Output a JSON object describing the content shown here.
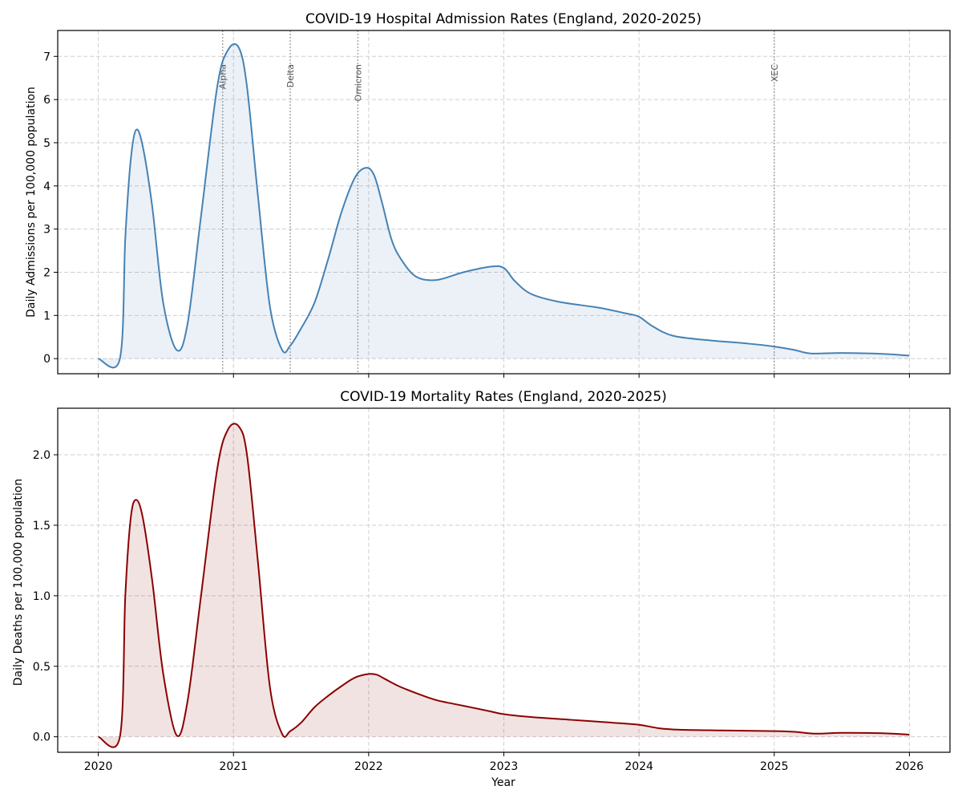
{
  "chart_data": [
    {
      "type": "area",
      "title": "COVID-19 Hospital Admission Rates (England, 2020-2025)",
      "xlabel": "",
      "ylabel": "Daily Admissions per 100,000 population",
      "xlim": [
        2019.7,
        2026.3
      ],
      "ylim": [
        -0.35,
        7.6
      ],
      "yticks": [
        0,
        1,
        2,
        3,
        4,
        5,
        6,
        7
      ],
      "ytick_labels": [
        "0",
        "1",
        "2",
        "3",
        "4",
        "5",
        "6",
        "7"
      ],
      "xticks": [
        2020,
        2021,
        2022,
        2023,
        2024,
        2025,
        2026
      ],
      "xtick_labels_visible": false,
      "grid": true,
      "line_color": "#4682b4",
      "fill_color": "#4682b4",
      "fill_alpha": 0.11,
      "x": [
        2020.0,
        2020.16,
        2020.2,
        2020.24,
        2020.28,
        2020.33,
        2020.4,
        2020.48,
        2020.58,
        2020.66,
        2020.76,
        2020.88,
        2020.96,
        2021.04,
        2021.1,
        2021.18,
        2021.27,
        2021.36,
        2021.42,
        2021.5,
        2021.6,
        2021.7,
        2021.8,
        2021.9,
        2021.98,
        2022.04,
        2022.1,
        2022.17,
        2022.24,
        2022.35,
        2022.5,
        2022.7,
        2022.9,
        2023.0,
        2023.08,
        2023.2,
        2023.4,
        2023.7,
        2023.9,
        2024.0,
        2024.1,
        2024.25,
        2024.5,
        2024.8,
        2025.0,
        2025.15,
        2025.27,
        2025.5,
        2025.8,
        2026.0
      ],
      "values": [
        0.0,
        0.0,
        2.8,
        4.6,
        5.3,
        4.9,
        3.5,
        1.3,
        0.2,
        0.8,
        3.3,
        6.3,
        7.15,
        7.2,
        6.3,
        3.8,
        1.2,
        0.2,
        0.3,
        0.7,
        1.3,
        2.3,
        3.4,
        4.2,
        4.42,
        4.25,
        3.6,
        2.75,
        2.3,
        1.9,
        1.82,
        2.0,
        2.13,
        2.1,
        1.8,
        1.5,
        1.32,
        1.18,
        1.05,
        0.97,
        0.75,
        0.53,
        0.43,
        0.35,
        0.28,
        0.2,
        0.12,
        0.13,
        0.11,
        0.07
      ],
      "variant_markers": [
        {
          "label": "Alpha",
          "x": 2020.92
        },
        {
          "label": "Delta",
          "x": 2021.42
        },
        {
          "label": "Omicron",
          "x": 2021.92
        },
        {
          "label": "XEC",
          "x": 2025.0
        }
      ]
    },
    {
      "type": "area",
      "title": "COVID-19 Mortality Rates (England, 2020-2025)",
      "xlabel": "Year",
      "ylabel": "Daily Deaths per 100,000 population",
      "xlim": [
        2019.7,
        2026.3
      ],
      "ylim": [
        -0.11,
        2.33
      ],
      "yticks": [
        0.0,
        0.5,
        1.0,
        1.5,
        2.0
      ],
      "ytick_labels": [
        "0.0",
        "0.5",
        "1.0",
        "1.5",
        "2.0"
      ],
      "xticks": [
        2020,
        2021,
        2022,
        2023,
        2024,
        2025,
        2026
      ],
      "xtick_labels": [
        "2020",
        "2021",
        "2022",
        "2023",
        "2024",
        "2025",
        "2026"
      ],
      "grid": true,
      "line_color": "#8b0000",
      "fill_color": "#8b0000",
      "fill_alpha": 0.11,
      "x": [
        2020.0,
        2020.16,
        2020.2,
        2020.24,
        2020.28,
        2020.33,
        2020.4,
        2020.48,
        2020.58,
        2020.66,
        2020.76,
        2020.88,
        2020.96,
        2021.04,
        2021.1,
        2021.18,
        2021.27,
        2021.36,
        2021.42,
        2021.5,
        2021.6,
        2021.7,
        2021.8,
        2021.9,
        2022.0,
        2022.06,
        2022.12,
        2022.22,
        2022.35,
        2022.5,
        2022.7,
        2022.9,
        2023.0,
        2023.2,
        2023.5,
        2023.8,
        2024.0,
        2024.15,
        2024.3,
        2024.6,
        2025.0,
        2025.15,
        2025.3,
        2025.5,
        2025.8,
        2026.0
      ],
      "values": [
        0.0,
        0.0,
        1.0,
        1.55,
        1.68,
        1.55,
        1.1,
        0.45,
        0.01,
        0.25,
        1.0,
        1.9,
        2.18,
        2.2,
        2.0,
        1.25,
        0.35,
        0.02,
        0.04,
        0.1,
        0.21,
        0.29,
        0.36,
        0.42,
        0.445,
        0.44,
        0.41,
        0.36,
        0.31,
        0.26,
        0.22,
        0.18,
        0.16,
        0.14,
        0.12,
        0.1,
        0.085,
        0.06,
        0.05,
        0.045,
        0.04,
        0.035,
        0.022,
        0.028,
        0.025,
        0.015
      ]
    }
  ]
}
